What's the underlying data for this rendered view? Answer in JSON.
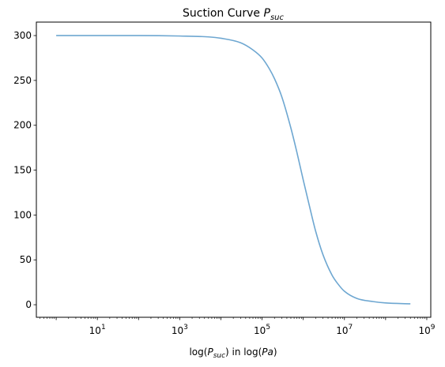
{
  "chart_data": {
    "type": "line",
    "title": {
      "main": "Suction Curve ",
      "symbol": "P",
      "subscript": "suc"
    },
    "xlabel": {
      "prefix": "log(",
      "symbol": "P",
      "subscript": "suc",
      "middle": ") in log(",
      "unit": "Pa",
      "suffix": ")"
    },
    "ylabel": "",
    "x_scale": "log",
    "xlim": [
      0.33,
      1250000000.0
    ],
    "ylim": [
      -14,
      315
    ],
    "grid": false,
    "x_ticks": [
      {
        "value": 10,
        "base": "10",
        "exp": "1"
      },
      {
        "value": 1000,
        "base": "10",
        "exp": "3"
      },
      {
        "value": 100000,
        "base": "10",
        "exp": "5"
      },
      {
        "value": 10000000,
        "base": "10",
        "exp": "7"
      },
      {
        "value": 1000000000,
        "base": "10",
        "exp": "9"
      }
    ],
    "y_ticks": [
      0,
      50,
      100,
      150,
      200,
      250,
      300
    ],
    "series": [
      {
        "color": "#6ea7d1",
        "x": [
          1,
          10,
          100,
          1000,
          5000,
          10000,
          30000,
          60000,
          100000,
          150000,
          200000,
          300000,
          500000,
          700000,
          1000000,
          1500000,
          2000000,
          3000000,
          5000000,
          7000000,
          10000000,
          20000000,
          50000000,
          100000000,
          400000000
        ],
        "y": [
          300,
          300,
          300,
          299.5,
          298.5,
          297,
          292,
          284,
          275,
          263,
          252,
          232,
          197,
          170,
          139,
          105,
          82,
          56,
          33,
          23,
          15,
          7,
          3.5,
          2,
          1
        ]
      }
    ]
  }
}
